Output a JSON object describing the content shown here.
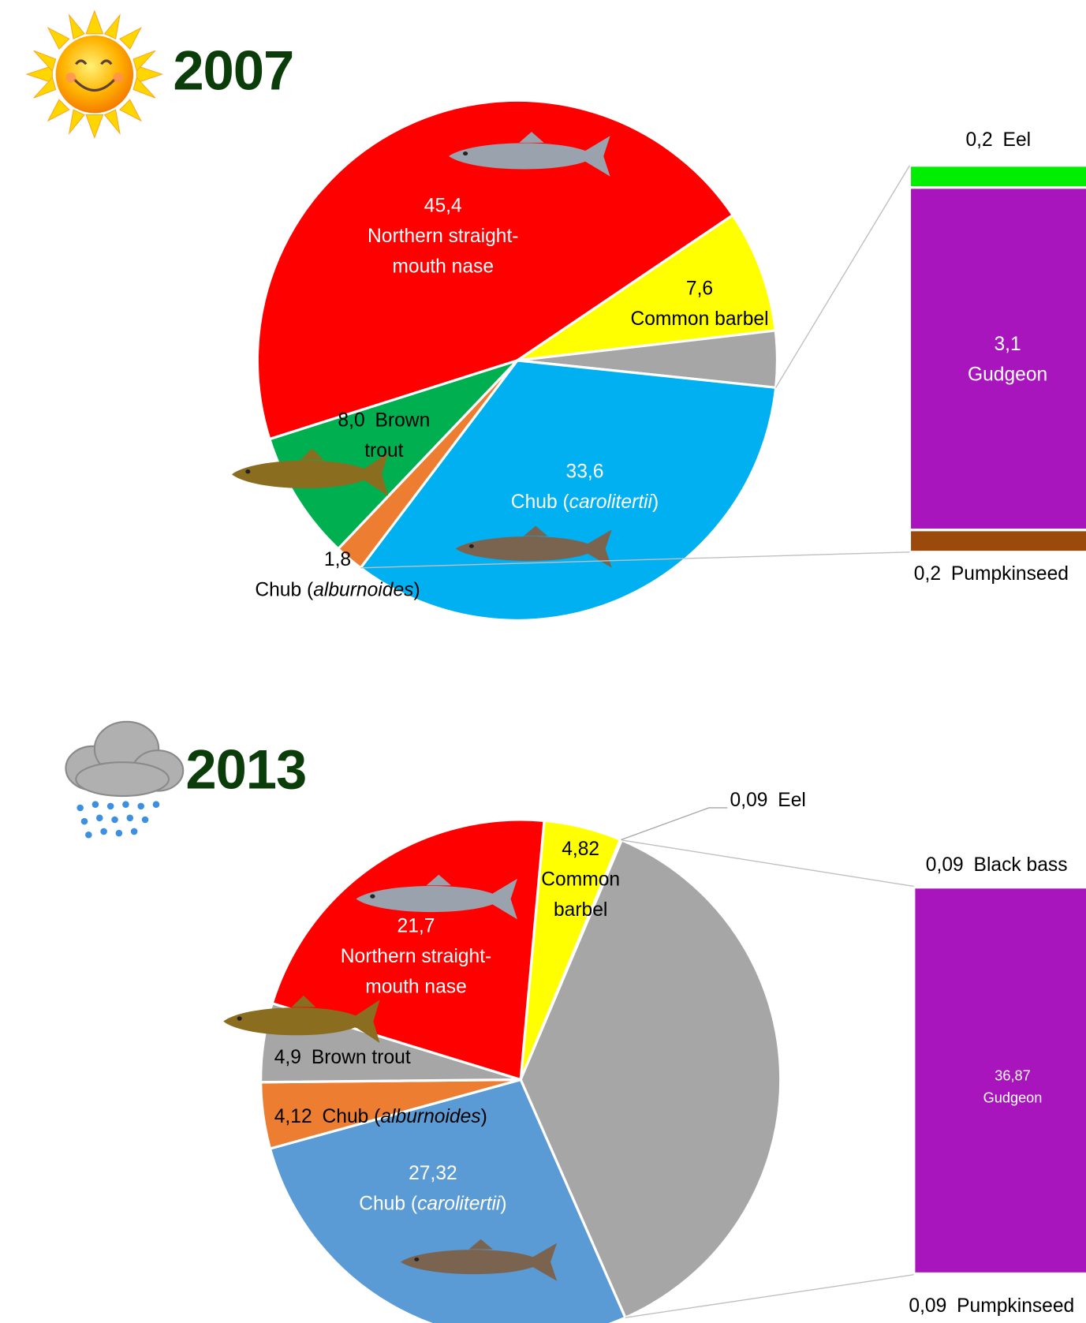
{
  "chart_data": [
    {
      "type": "pie",
      "title": "2007",
      "categories": [
        "Common barbel",
        null,
        "Chub (carolitertii)",
        "Chub (alburnoides)",
        "Brown trout",
        "Northern straight-mouth nase"
      ],
      "values": [
        7.6,
        3.5,
        33.6,
        1.8,
        8.0,
        45.4
      ],
      "value_labels": [
        "7,6",
        null,
        "33,6",
        "1,8",
        "8,0",
        "45,4"
      ],
      "colors": [
        "#ffff00",
        "#a6a6a6",
        "#00b0f0",
        "#ed7d31",
        "#00b050",
        "#ff0000"
      ],
      "bar": {
        "categories": [
          "Eel",
          "Gudgeon",
          "Pumpkinseed"
        ],
        "values": [
          0.2,
          3.1,
          0.2
        ],
        "value_labels": [
          "0,2",
          "3,1",
          "0,2"
        ],
        "colors": [
          "#00ee00",
          "#a815bd",
          "#9c4a0c"
        ]
      }
    },
    {
      "type": "pie",
      "title": "2013",
      "categories": [
        "Common barbel",
        "Eel",
        null,
        "Chub (carolitertii)",
        "Chub (alburnoides)",
        "Brown trout",
        "Northern straight-mouth nase"
      ],
      "values": [
        4.82,
        0.09,
        37.05,
        27.32,
        4.12,
        4.9,
        21.7
      ],
      "value_labels": [
        "4,82",
        "0,09",
        null,
        "27,32",
        "4,12",
        "4,9",
        "21,7"
      ],
      "colors": [
        "#ffff00",
        "#00e000",
        "#a6a6a6",
        "#5b9bd5",
        "#ed7d31",
        "#a6a6a6",
        "#ff0000"
      ],
      "bar": {
        "categories": [
          "Black bass",
          "Gudgeon",
          "Pumpkinseed"
        ],
        "values": [
          0.09,
          36.87,
          0.09
        ],
        "value_labels": [
          "0,09",
          "36,87",
          "0,09"
        ],
        "colors": [
          "#1f3864",
          "#a815bd",
          "#9c4a0c"
        ]
      }
    }
  ]
}
